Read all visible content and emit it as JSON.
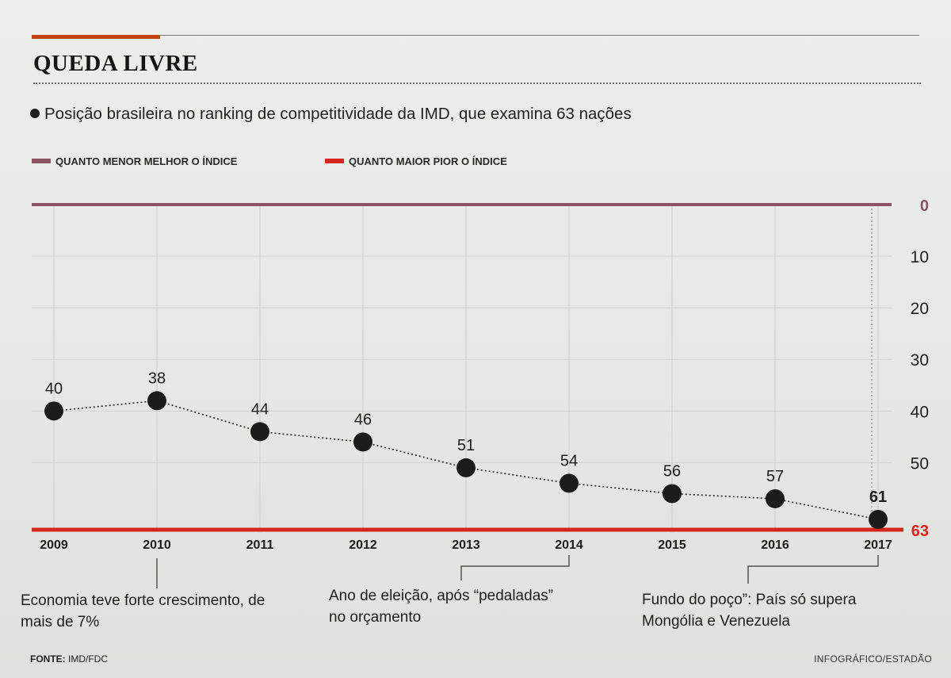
{
  "title": "QUEDA LIVRE",
  "subtitle": "Posição brasileira no ranking de competitividade da IMD, que examina 63 nações",
  "legend": {
    "better": {
      "label": "QUANTO MENOR MELHOR O ÍNDICE",
      "color": "#8a5560"
    },
    "worse": {
      "label": "QUANTO MAIOR PIOR O ÍNDICE",
      "color": "#d7261e"
    }
  },
  "chart_data": {
    "type": "line",
    "x": [
      "2009",
      "2010",
      "2011",
      "2012",
      "2013",
      "2014",
      "2015",
      "2016",
      "2017"
    ],
    "y": [
      40,
      38,
      44,
      46,
      51,
      54,
      56,
      57,
      61
    ],
    "y_ticks": [
      0,
      10,
      20,
      30,
      40,
      50,
      63
    ],
    "ylim": [
      0,
      63
    ],
    "y_inverted": true,
    "y_axis_side": "right",
    "grid": true,
    "line_style": "dotted",
    "colors": {
      "top_line": "#8a5560",
      "bottom_line": "#d7261e",
      "tick_63": "#d7261e",
      "points": "#1c1c1c"
    }
  },
  "annotations": [
    {
      "year": "2010",
      "text": "Economia teve forte crescimento, de mais de 7%"
    },
    {
      "year": "2014",
      "text": "Ano de eleição, após “pedaladas” no orçamento"
    },
    {
      "year": "2017",
      "text": "Fundo do poço”: País só supera Mongólia e Venezuela"
    }
  ],
  "source": {
    "label": "FONTE:",
    "value": "IMD/FDC"
  },
  "credit": "INFOGRÁFICO/ESTADÃO"
}
